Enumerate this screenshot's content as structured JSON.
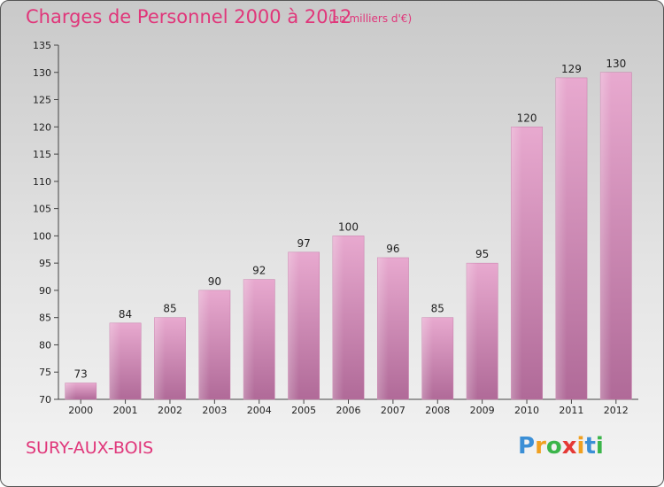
{
  "header": {
    "title": "Charges de Personnel 2000 à 2012",
    "subtitle": "(en milliers d'€)"
  },
  "footer": {
    "city": "SURY-AUX-BOIS",
    "logo": {
      "letters": [
        "P",
        "r",
        "o",
        "x",
        "i",
        "t",
        "i"
      ],
      "colors": [
        "#3b8fd6",
        "#f0a020",
        "#3bb54a",
        "#e53935",
        "#f0a020",
        "#3b8fd6",
        "#3bb54a"
      ]
    }
  },
  "chart_data": {
    "type": "bar",
    "categories": [
      "2000",
      "2001",
      "2002",
      "2003",
      "2004",
      "2005",
      "2006",
      "2007",
      "2008",
      "2009",
      "2010",
      "2011",
      "2012"
    ],
    "values": [
      73,
      84,
      85,
      90,
      92,
      97,
      100,
      96,
      85,
      95,
      120,
      129,
      130
    ],
    "ylim": [
      70,
      135
    ],
    "yticks": [
      70,
      75,
      80,
      85,
      90,
      95,
      100,
      105,
      110,
      115,
      120,
      125,
      130,
      135
    ],
    "bar_color": "#d98bb8",
    "grid": false,
    "legend": "none"
  }
}
